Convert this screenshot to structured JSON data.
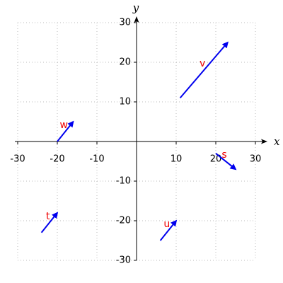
{
  "chart_data": {
    "type": "vector",
    "xlabel": "x",
    "ylabel": "y",
    "xlim": [
      -30,
      30
    ],
    "ylim": [
      -30,
      30
    ],
    "xticks": [
      -30,
      -20,
      -10,
      10,
      20,
      30
    ],
    "yticks": [
      -30,
      -20,
      -10,
      10,
      20,
      30
    ],
    "grid": true,
    "color": "#0000ee",
    "label_color": "#ee0000",
    "vectors": [
      {
        "name": "v",
        "start": [
          11,
          11
        ],
        "end": [
          23,
          25
        ]
      },
      {
        "name": "w",
        "start": [
          -20,
          0
        ],
        "end": [
          -16,
          5
        ]
      },
      {
        "name": "s",
        "start": [
          20,
          -3
        ],
        "end": [
          25,
          -7
        ]
      },
      {
        "name": "t",
        "start": [
          -24,
          -23
        ],
        "end": [
          -20,
          -18
        ]
      },
      {
        "name": "u",
        "start": [
          6,
          -25
        ],
        "end": [
          10,
          -20
        ]
      }
    ]
  }
}
